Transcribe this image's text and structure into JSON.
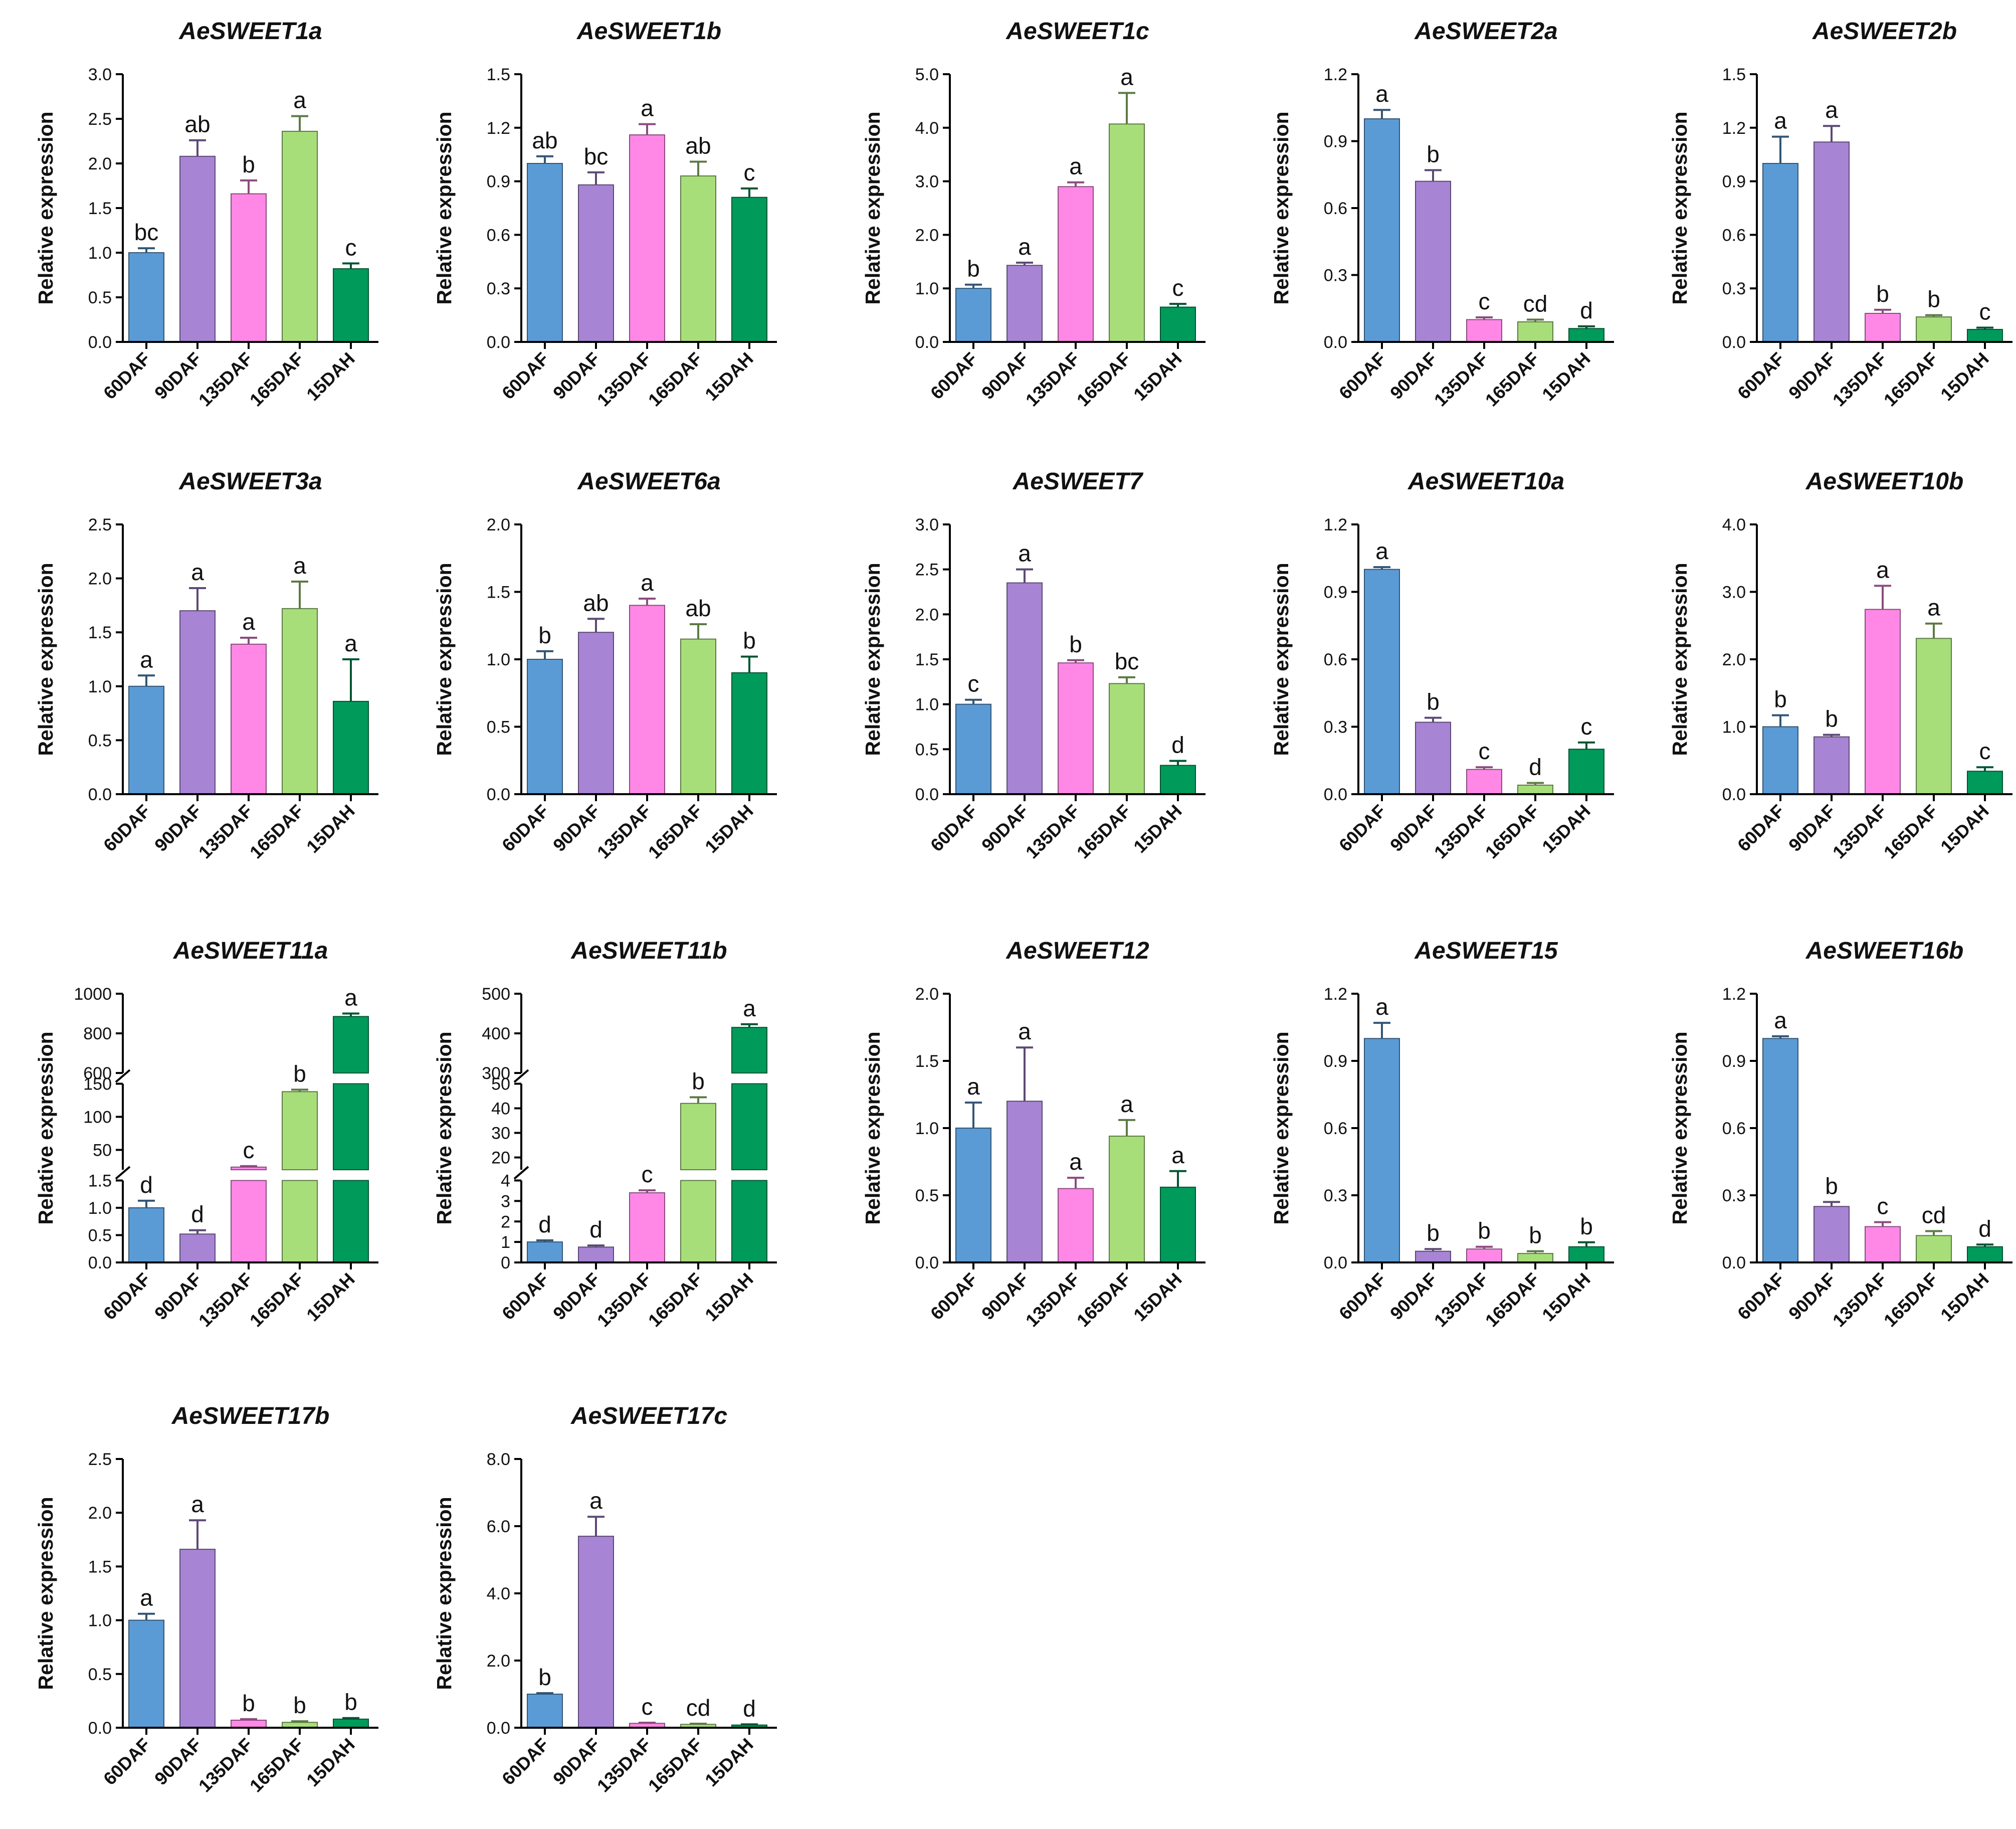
{
  "colors": [
    "#5b9bd5",
    "#a884d4",
    "#ff88e6",
    "#a8de7a",
    "#009a5a"
  ],
  "chart_data": [
    {
      "type": "bar",
      "title": "AeSWEET1a",
      "ylabel": "Relative expression",
      "categories": [
        "60DAF",
        "90DAF",
        "135DAF",
        "165DAF",
        "15DAH"
      ],
      "values": [
        1.0,
        2.08,
        1.66,
        2.36,
        0.82
      ],
      "errors": [
        0.05,
        0.18,
        0.15,
        0.17,
        0.06
      ],
      "letters": [
        "bc",
        "ab",
        "b",
        "a",
        "c"
      ],
      "ylim": [
        0,
        3.0
      ],
      "yticks": [
        "0.0",
        "0.5",
        "1.0",
        "1.5",
        "2.0",
        "2.5",
        "3.0"
      ],
      "tickvals": [
        0,
        0.5,
        1,
        1.5,
        2,
        2.5,
        3
      ]
    },
    {
      "type": "bar",
      "title": "AeSWEET1b",
      "ylabel": "Relative expression",
      "categories": [
        "60DAF",
        "90DAF",
        "135DAF",
        "165DAF",
        "15DAH"
      ],
      "values": [
        1.0,
        0.88,
        1.16,
        0.93,
        0.81
      ],
      "errors": [
        0.04,
        0.07,
        0.06,
        0.08,
        0.05
      ],
      "letters": [
        "ab",
        "bc",
        "a",
        "ab",
        "c"
      ],
      "ylim": [
        0,
        1.5
      ],
      "yticks": [
        "0.0",
        "0.3",
        "0.6",
        "0.9",
        "1.2",
        "1.5"
      ],
      "tickvals": [
        0,
        0.3,
        0.6,
        0.9,
        1.2,
        1.5
      ]
    },
    {
      "type": "bar",
      "title": "AeSWEET1c",
      "ylabel": "Relative expression",
      "categories": [
        "60DAF",
        "90DAF",
        "135DAF",
        "165DAF",
        "15DAH"
      ],
      "values": [
        1.0,
        1.43,
        2.9,
        4.07,
        0.65
      ],
      "errors": [
        0.07,
        0.05,
        0.08,
        0.58,
        0.06
      ],
      "letters": [
        "b",
        "a",
        "a",
        "a",
        "c"
      ],
      "ylim": [
        0,
        5.0
      ],
      "yticks": [
        "0.0",
        "1.0",
        "2.0",
        "3.0",
        "4.0",
        "5.0"
      ],
      "tickvals": [
        0,
        1,
        2,
        3,
        4,
        5
      ]
    },
    {
      "type": "bar",
      "title": "AeSWEET2a",
      "ylabel": "Relative expression",
      "categories": [
        "60DAF",
        "90DAF",
        "135DAF",
        "165DAF",
        "15DAH"
      ],
      "values": [
        1.0,
        0.72,
        0.1,
        0.09,
        0.06
      ],
      "errors": [
        0.04,
        0.05,
        0.01,
        0.01,
        0.01
      ],
      "letters": [
        "a",
        "b",
        "c",
        "cd",
        "d"
      ],
      "ylim": [
        0,
        1.2
      ],
      "yticks": [
        "0.0",
        "0.3",
        "0.6",
        "0.9",
        "1.2"
      ],
      "tickvals": [
        0,
        0.3,
        0.6,
        0.9,
        1.2
      ]
    },
    {
      "type": "bar",
      "title": "AeSWEET2b",
      "ylabel": "Relative expression",
      "categories": [
        "60DAF",
        "90DAF",
        "135DAF",
        "165DAF",
        "15DAH"
      ],
      "values": [
        1.0,
        1.12,
        0.16,
        0.14,
        0.07
      ],
      "errors": [
        0.15,
        0.09,
        0.02,
        0.01,
        0.01
      ],
      "letters": [
        "a",
        "a",
        "b",
        "b",
        "c"
      ],
      "ylim": [
        0,
        1.5
      ],
      "yticks": [
        "0.0",
        "0.3",
        "0.6",
        "0.9",
        "1.2",
        "1.5"
      ],
      "tickvals": [
        0,
        0.3,
        0.6,
        0.9,
        1.2,
        1.5
      ]
    },
    {
      "type": "bar",
      "title": "AeSWEET3a",
      "ylabel": "Relative expression",
      "categories": [
        "60DAF",
        "90DAF",
        "135DAF",
        "165DAF",
        "15DAH"
      ],
      "values": [
        1.0,
        1.7,
        1.39,
        1.72,
        0.86
      ],
      "errors": [
        0.1,
        0.21,
        0.06,
        0.25,
        0.39
      ],
      "letters": [
        "a",
        "a",
        "a",
        "a",
        "a"
      ],
      "ylim": [
        0,
        2.5
      ],
      "yticks": [
        "0.0",
        "0.5",
        "1.0",
        "1.5",
        "2.0",
        "2.5"
      ],
      "tickvals": [
        0,
        0.5,
        1,
        1.5,
        2,
        2.5
      ]
    },
    {
      "type": "bar",
      "title": "AeSWEET6a",
      "ylabel": "Relative expression",
      "categories": [
        "60DAF",
        "90DAF",
        "135DAF",
        "165DAF",
        "15DAH"
      ],
      "values": [
        1.0,
        1.2,
        1.4,
        1.15,
        0.9
      ],
      "errors": [
        0.06,
        0.1,
        0.05,
        0.11,
        0.12
      ],
      "letters": [
        "b",
        "ab",
        "a",
        "ab",
        "b"
      ],
      "ylim": [
        0,
        2.0
      ],
      "yticks": [
        "0.0",
        "0.5",
        "1.0",
        "1.5",
        "2.0"
      ],
      "tickvals": [
        0,
        0.5,
        1,
        1.5,
        2
      ]
    },
    {
      "type": "bar",
      "title": "AeSWEET7",
      "ylabel": "Relative expression",
      "categories": [
        "60DAF",
        "90DAF",
        "135DAF",
        "165DAF",
        "15DAH"
      ],
      "values": [
        1.0,
        2.35,
        1.46,
        1.23,
        0.32
      ],
      "errors": [
        0.05,
        0.15,
        0.03,
        0.07,
        0.05
      ],
      "letters": [
        "c",
        "a",
        "b",
        "bc",
        "d"
      ],
      "ylim": [
        0,
        3.0
      ],
      "yticks": [
        "0.0",
        "0.5",
        "1.0",
        "1.5",
        "2.0",
        "2.5",
        "3.0"
      ],
      "tickvals": [
        0,
        0.5,
        1,
        1.5,
        2,
        2.5,
        3
      ]
    },
    {
      "type": "bar",
      "title": "AeSWEET10a",
      "ylabel": "Relative expression",
      "categories": [
        "60DAF",
        "90DAF",
        "135DAF",
        "165DAF",
        "15DAH"
      ],
      "values": [
        1.0,
        0.32,
        0.11,
        0.04,
        0.2
      ],
      "errors": [
        0.01,
        0.02,
        0.01,
        0.01,
        0.03
      ],
      "letters": [
        "a",
        "b",
        "c",
        "d",
        "c"
      ],
      "ylim": [
        0,
        1.2
      ],
      "yticks": [
        "0.0",
        "0.3",
        "0.6",
        "0.9",
        "1.2"
      ],
      "tickvals": [
        0,
        0.3,
        0.6,
        0.9,
        1.2
      ]
    },
    {
      "type": "bar",
      "title": "AeSWEET10b",
      "ylabel": "Relative expression",
      "categories": [
        "60DAF",
        "90DAF",
        "135DAF",
        "165DAF",
        "15DAH"
      ],
      "values": [
        1.0,
        0.85,
        2.74,
        2.31,
        0.34
      ],
      "errors": [
        0.17,
        0.03,
        0.35,
        0.22,
        0.06
      ],
      "letters": [
        "b",
        "b",
        "a",
        "a",
        "c"
      ],
      "ylim": [
        0,
        4.0
      ],
      "yticks": [
        "0.0",
        "1.0",
        "2.0",
        "3.0",
        "4.0"
      ],
      "tickvals": [
        0,
        1,
        2,
        3,
        4
      ]
    },
    {
      "type": "bar",
      "title": "AeSWEET11a",
      "ylabel": "Relative expression",
      "categories": [
        "60DAF",
        "90DAF",
        "135DAF",
        "165DAF",
        "15DAH"
      ],
      "values": [
        1.0,
        0.52,
        24,
        138,
        885
      ],
      "errors": [
        0.13,
        0.07,
        1.5,
        3,
        15
      ],
      "letters": [
        "d",
        "d",
        "c",
        "b",
        "a"
      ],
      "broken_axis": [
        {
          "range": [
            0,
            1.5
          ],
          "ticks": [
            "0.0",
            "0.5",
            "1.0",
            "1.5"
          ],
          "tickvals": [
            0,
            0.5,
            1,
            1.5
          ]
        },
        {
          "range": [
            20,
            150
          ],
          "ticks": [
            "50",
            "100",
            "150"
          ],
          "tickvals": [
            50,
            100,
            150
          ]
        },
        {
          "range": [
            600,
            1000
          ],
          "ticks": [
            "600",
            "800",
            "1000"
          ],
          "tickvals": [
            600,
            800,
            1000
          ]
        }
      ]
    },
    {
      "type": "bar",
      "title": "AeSWEET11b",
      "ylabel": "Relative expression",
      "categories": [
        "60DAF",
        "90DAF",
        "135DAF",
        "165DAF",
        "15DAH"
      ],
      "values": [
        1.0,
        0.75,
        3.4,
        42,
        415
      ],
      "errors": [
        0.08,
        0.08,
        0.12,
        2.5,
        8
      ],
      "letters": [
        "d",
        "d",
        "c",
        "b",
        "a"
      ],
      "broken_axis": [
        {
          "range": [
            0,
            4
          ],
          "ticks": [
            "0",
            "1",
            "2",
            "3",
            "4"
          ],
          "tickvals": [
            0,
            1,
            2,
            3,
            4
          ]
        },
        {
          "range": [
            15,
            50
          ],
          "ticks": [
            "20",
            "30",
            "40",
            "50"
          ],
          "tickvals": [
            20,
            30,
            40,
            50
          ]
        },
        {
          "range": [
            300,
            500
          ],
          "ticks": [
            "300",
            "400",
            "500"
          ],
          "tickvals": [
            300,
            400,
            500
          ]
        }
      ]
    },
    {
      "type": "bar",
      "title": "AeSWEET12",
      "ylabel": "Relative expression",
      "categories": [
        "60DAF",
        "90DAF",
        "135DAF",
        "165DAF",
        "15DAH"
      ],
      "values": [
        1.0,
        1.2,
        0.55,
        0.94,
        0.56
      ],
      "errors": [
        0.19,
        0.4,
        0.08,
        0.12,
        0.12
      ],
      "letters": [
        "a",
        "a",
        "a",
        "a",
        "a"
      ],
      "ylim": [
        0,
        2.0
      ],
      "yticks": [
        "0.0",
        "0.5",
        "1.0",
        "1.5",
        "2.0"
      ],
      "tickvals": [
        0,
        0.5,
        1,
        1.5,
        2
      ]
    },
    {
      "type": "bar",
      "title": "AeSWEET15",
      "ylabel": "Relative expression",
      "categories": [
        "60DAF",
        "90DAF",
        "135DAF",
        "165DAF",
        "15DAH"
      ],
      "values": [
        1.0,
        0.05,
        0.06,
        0.04,
        0.07
      ],
      "errors": [
        0.07,
        0.01,
        0.01,
        0.01,
        0.02
      ],
      "letters": [
        "a",
        "b",
        "b",
        "b",
        "b"
      ],
      "ylim": [
        0,
        1.2
      ],
      "yticks": [
        "0.0",
        "0.3",
        "0.6",
        "0.9",
        "1.2"
      ],
      "tickvals": [
        0,
        0.3,
        0.6,
        0.9,
        1.2
      ]
    },
    {
      "type": "bar",
      "title": "AeSWEET16b",
      "ylabel": "Relative expression",
      "categories": [
        "60DAF",
        "90DAF",
        "135DAF",
        "165DAF",
        "15DAH"
      ],
      "values": [
        1.0,
        0.25,
        0.16,
        0.12,
        0.07
      ],
      "errors": [
        0.01,
        0.02,
        0.02,
        0.02,
        0.01
      ],
      "letters": [
        "a",
        "b",
        "c",
        "cd",
        "d"
      ],
      "ylim": [
        0,
        1.2
      ],
      "yticks": [
        "0.0",
        "0.3",
        "0.6",
        "0.9",
        "1.2"
      ],
      "tickvals": [
        0,
        0.3,
        0.6,
        0.9,
        1.2
      ]
    },
    {
      "type": "bar",
      "title": "AeSWEET17b",
      "ylabel": "Relative expression",
      "categories": [
        "60DAF",
        "90DAF",
        "135DAF",
        "165DAF",
        "15DAH"
      ],
      "values": [
        1.0,
        1.66,
        0.07,
        0.05,
        0.08
      ],
      "errors": [
        0.06,
        0.27,
        0.01,
        0.01,
        0.01
      ],
      "letters": [
        "a",
        "a",
        "b",
        "b",
        "b"
      ],
      "ylim": [
        0,
        2.5
      ],
      "yticks": [
        "0.0",
        "0.5",
        "1.0",
        "1.5",
        "2.0",
        "2.5"
      ],
      "tickvals": [
        0,
        0.5,
        1,
        1.5,
        2,
        2.5
      ]
    },
    {
      "type": "bar",
      "title": "AeSWEET17c",
      "ylabel": "Relative expression",
      "categories": [
        "60DAF",
        "90DAF",
        "135DAF",
        "165DAF",
        "15DAH"
      ],
      "values": [
        1.0,
        5.7,
        0.13,
        0.1,
        0.08
      ],
      "errors": [
        0.03,
        0.58,
        0.02,
        0.02,
        0.02
      ],
      "letters": [
        "b",
        "a",
        "c",
        "cd",
        "d"
      ],
      "ylim": [
        0,
        8.0
      ],
      "yticks": [
        "0.0",
        "2.0",
        "4.0",
        "6.0",
        "8.0"
      ],
      "tickvals": [
        0,
        2,
        4,
        6,
        8
      ]
    }
  ]
}
